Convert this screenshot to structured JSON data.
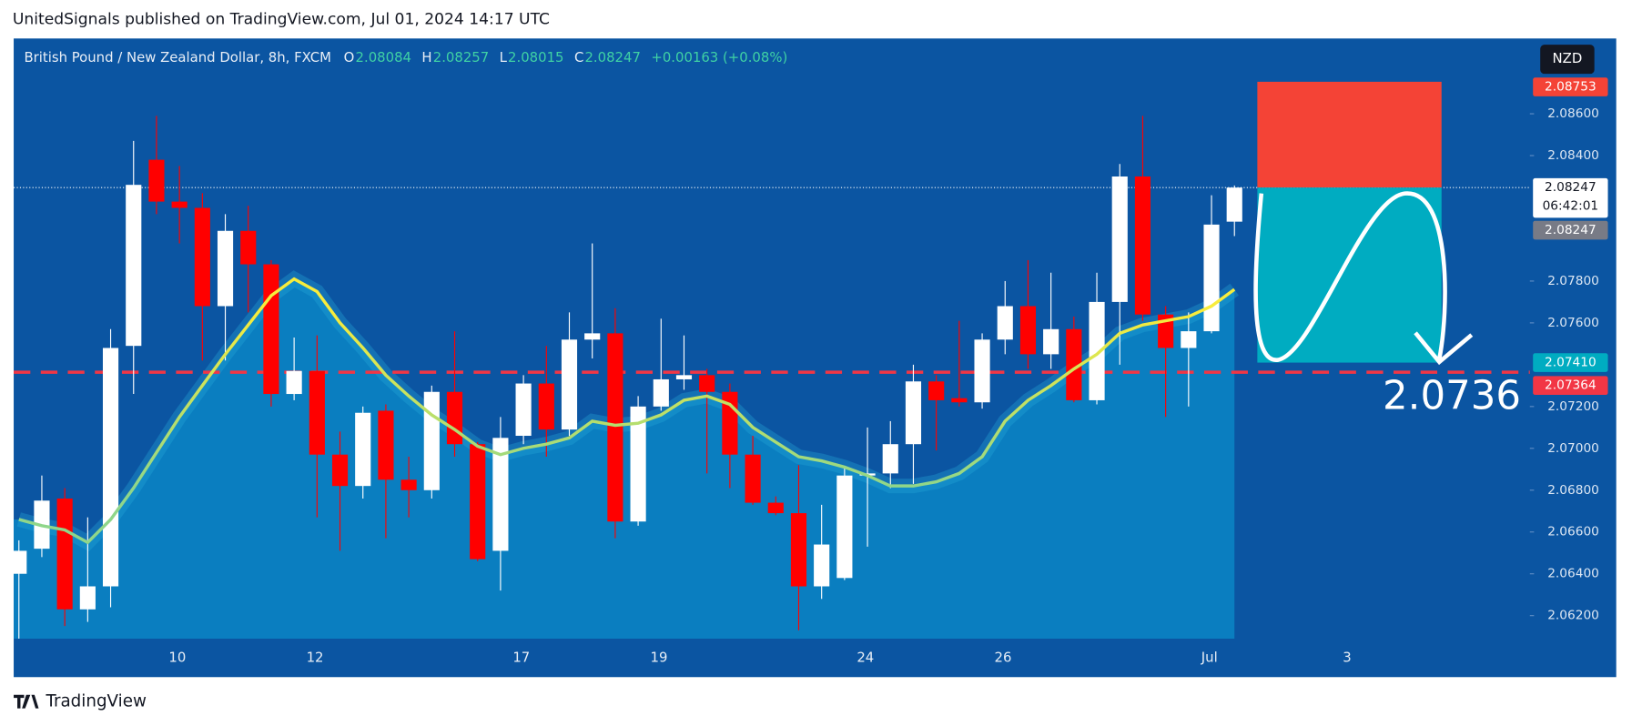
{
  "header": {
    "title": "UnitedSignals published on TradingView.com, Jul 01, 2024 14:17 UTC",
    "brand": "TradingView",
    "currency_button": "NZD"
  },
  "chart_data": {
    "type": "candlestick",
    "title": "British Pound / New Zealand Dollar, 8h, FXCM",
    "ohlc_labels": [
      "O",
      "H",
      "L",
      "C"
    ],
    "change": "+0.00163 (+0.08%)",
    "categories": [
      null,
      null,
      null,
      null,
      null,
      null,
      null,
      "10",
      null,
      null,
      null,
      null,
      null,
      "12",
      null,
      null,
      null,
      null,
      null,
      null,
      null,
      null,
      "17",
      null,
      null,
      null,
      null,
      null,
      "19",
      null,
      null,
      null,
      null,
      null,
      null,
      null,
      null,
      "24",
      null,
      null,
      null,
      null,
      null,
      "26",
      null,
      null,
      null,
      null,
      null,
      null,
      null,
      null,
      "Jul",
      null,
      null,
      null,
      null,
      null,
      "3",
      null,
      null,
      null,
      null,
      null,
      null,
      null
    ],
    "open": [
      2.064,
      2.0652,
      2.0676,
      2.0623,
      2.0634,
      2.0749,
      2.0838,
      2.0818,
      2.0815,
      2.0768,
      2.0804,
      2.0788,
      2.0726,
      2.0737,
      2.0697,
      2.0682,
      2.0718,
      2.0685,
      2.068,
      2.0727,
      2.0702,
      2.0651,
      2.0706,
      2.0731,
      2.0709,
      2.0752,
      2.0755,
      2.0665,
      2.072,
      2.0733,
      2.0735,
      2.0727,
      2.0697,
      2.0674,
      2.0669,
      2.0634,
      2.0638,
      2.0687,
      2.0688,
      2.0702,
      2.0732,
      2.0724,
      2.0722,
      2.0752,
      2.0768,
      2.0745,
      2.0757,
      2.0723,
      2.077,
      2.083,
      2.0764,
      2.0748,
      2.0756,
      2.08084,
      null,
      null,
      null,
      null,
      null,
      null,
      null,
      null,
      null,
      null,
      null,
      null
    ],
    "high": [
      2.0656,
      2.0687,
      2.0681,
      2.0667,
      2.0757,
      2.0847,
      2.0859,
      2.0835,
      2.0822,
      2.0812,
      2.0816,
      2.079,
      2.0753,
      2.0754,
      2.0708,
      2.072,
      2.0721,
      2.0696,
      2.073,
      2.0756,
      2.0703,
      2.0715,
      2.0735,
      2.0749,
      2.0765,
      2.0798,
      2.0767,
      2.0725,
      2.0762,
      2.0754,
      2.0738,
      2.0731,
      2.0706,
      2.0677,
      2.0692,
      2.0673,
      2.0691,
      2.071,
      2.0713,
      2.074,
      2.0735,
      2.0761,
      2.0755,
      2.078,
      2.079,
      2.0784,
      2.0763,
      2.0784,
      2.0836,
      2.0859,
      2.0768,
      2.0765,
      2.0821,
      2.08257,
      null,
      null,
      null,
      null,
      null,
      null,
      null,
      null,
      null,
      null,
      null,
      null
    ],
    "low": [
      2.0609,
      2.0648,
      2.0615,
      2.0617,
      2.0624,
      2.0726,
      2.0812,
      2.0798,
      2.0742,
      2.0742,
      2.0765,
      2.072,
      2.0723,
      2.0667,
      2.0651,
      2.0676,
      2.0657,
      2.0667,
      2.0676,
      2.0696,
      2.0646,
      2.0632,
      2.0702,
      2.0696,
      2.0706,
      2.0743,
      2.0657,
      2.0663,
      2.0718,
      2.0728,
      2.0688,
      2.0681,
      2.0673,
      2.0668,
      2.0613,
      2.0628,
      2.0637,
      2.0653,
      2.0681,
      2.0683,
      2.0699,
      2.072,
      2.0719,
      2.0745,
      2.0738,
      2.0738,
      2.0722,
      2.0721,
      2.074,
      2.0761,
      2.0715,
      2.072,
      2.0755,
      2.08015,
      null,
      null,
      null,
      null,
      null,
      null,
      null,
      null,
      null,
      null,
      null,
      null
    ],
    "close": [
      2.0651,
      2.0675,
      2.0623,
      2.0634,
      2.0748,
      2.0826,
      2.0818,
      2.0815,
      2.0768,
      2.0804,
      2.0788,
      2.0726,
      2.0737,
      2.0697,
      2.0682,
      2.0717,
      2.0685,
      2.068,
      2.0727,
      2.0702,
      2.0647,
      2.0705,
      2.0731,
      2.0709,
      2.0752,
      2.0755,
      2.0665,
      2.072,
      2.0733,
      2.0735,
      2.0727,
      2.0697,
      2.0674,
      2.0669,
      2.0634,
      2.0654,
      2.0687,
      2.0688,
      2.0702,
      2.0732,
      2.0723,
      2.0722,
      2.0752,
      2.0768,
      2.0745,
      2.0757,
      2.0723,
      2.077,
      2.083,
      2.0764,
      2.0748,
      2.0756,
      2.0807,
      2.08247,
      null,
      null,
      null,
      null,
      null,
      null,
      null,
      null,
      null,
      null,
      null,
      null
    ],
    "up_color": "#ffffff",
    "down_color": "#ff0000",
    "ma": {
      "colors": [
        "#f7ec3c",
        "#8fd68a"
      ],
      "values": [
        2.0666,
        2.0663,
        2.0661,
        2.0655,
        2.0666,
        2.0681,
        2.0698,
        2.0715,
        2.073,
        2.0745,
        2.0759,
        2.0773,
        2.0781,
        2.0775,
        2.076,
        2.0748,
        2.0735,
        2.0725,
        2.0716,
        2.0709,
        2.0701,
        2.0697,
        2.07,
        2.0702,
        2.0705,
        2.0713,
        2.0711,
        2.0712,
        2.0716,
        2.0723,
        2.0725,
        2.0721,
        2.071,
        2.0703,
        2.0696,
        2.0694,
        2.0691,
        2.0687,
        2.0682,
        2.0682,
        2.0684,
        2.0688,
        2.0696,
        2.0713,
        2.0723,
        2.073,
        2.0738,
        2.0745,
        2.0755,
        2.0759,
        2.0761,
        2.0763,
        2.0768,
        2.0776,
        null,
        null,
        null,
        null,
        null,
        null,
        null,
        null,
        null,
        null,
        null,
        null
      ]
    },
    "ylim": [
      2.0609,
      2.0896
    ],
    "yticks": [
      {
        "value": 2.062,
        "label": "2.06200"
      },
      {
        "value": 2.064,
        "label": "2.06400"
      },
      {
        "value": 2.066,
        "label": "2.06600"
      },
      {
        "value": 2.068,
        "label": "2.06800"
      },
      {
        "value": 2.07,
        "label": "2.07000"
      },
      {
        "value": 2.072,
        "label": "2.07200"
      },
      {
        "value": 2.076,
        "label": "2.07600"
      },
      {
        "value": 2.078,
        "label": "2.07800"
      },
      {
        "value": 2.084,
        "label": "2.08400"
      },
      {
        "value": 2.086,
        "label": "2.08600"
      }
    ],
    "position": {
      "stop": 2.08753,
      "target": {
        "value": 2.0741,
        "label": "2.07410"
      },
      "stop_color": "#f44336",
      "target_color": "#00acc1"
    },
    "level": {
      "value": 2.07364,
      "color": "#f23645"
    },
    "countdown": "06:42:01",
    "annotation": "2.0736"
  }
}
